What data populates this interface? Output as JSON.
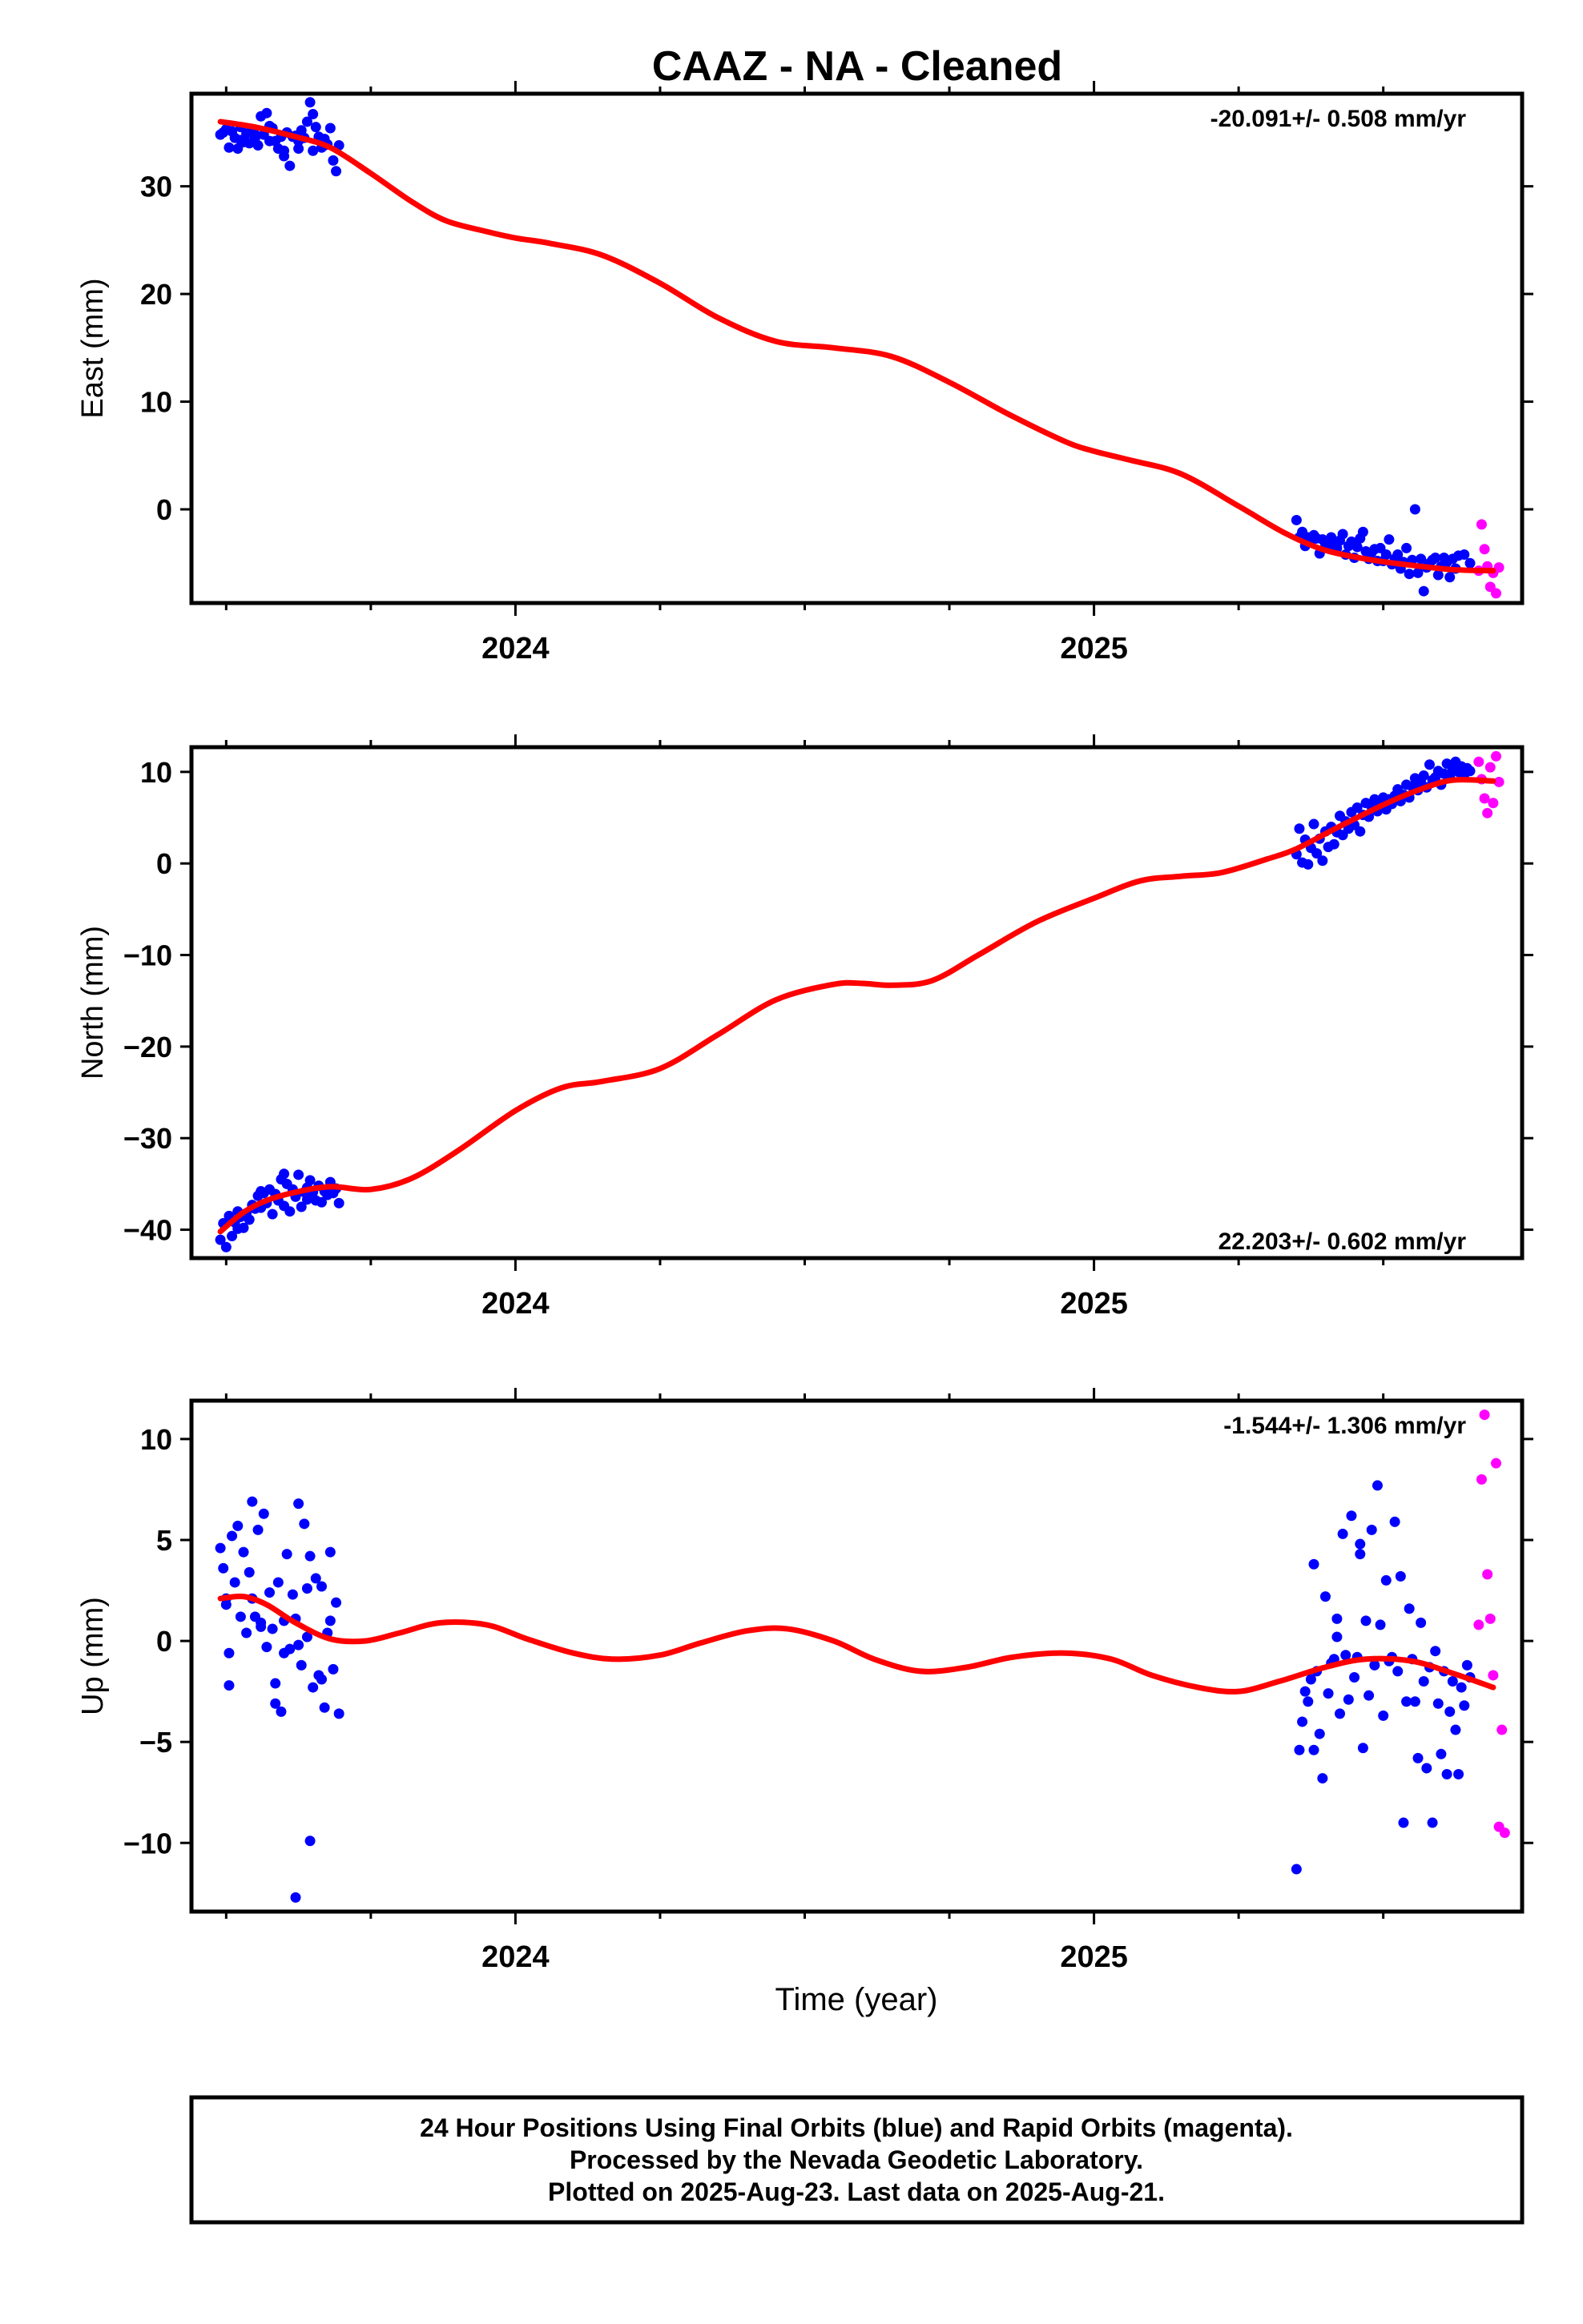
{
  "title": "CAAZ  - NA - Cleaned",
  "xlabel": "Time (year)",
  "footer": [
    "24 Hour Positions Using Final Orbits (blue) and Rapid Orbits (magenta).",
    "Processed by the Nevada Geodetic Laboratory.",
    "Plotted on 2025-Aug-23. Last data on 2025-Aug-21."
  ],
  "colors": {
    "final": "#0000ff",
    "rapid": "#ff00ff",
    "fit": "#ff0000",
    "frame": "#000000"
  },
  "chart_data": [
    {
      "type": "scatter",
      "ylabel": "East (mm)",
      "rate": "-20.091+/- 0.508 mm/yr",
      "xlim": [
        2023.44,
        2025.74
      ],
      "ylim": [
        -8.7,
        38.6
      ],
      "yticks": [
        0,
        10,
        20,
        30
      ],
      "xticks": [
        2024,
        2025
      ],
      "fit": {
        "x": [
          2023.49,
          2023.55,
          2023.62,
          2023.68,
          2023.75,
          2023.82,
          2023.88,
          2023.95,
          2024.0,
          2024.06,
          2024.15,
          2024.25,
          2024.35,
          2024.45,
          2024.55,
          2024.65,
          2024.75,
          2024.85,
          2024.95,
          2025.0,
          2025.06,
          2025.15,
          2025.25,
          2025.33,
          2025.4,
          2025.48,
          2025.55,
          2025.62,
          2025.69
        ],
        "y": [
          36.0,
          35.5,
          34.6,
          33.6,
          31.2,
          28.6,
          26.8,
          25.8,
          25.2,
          24.7,
          23.6,
          21.0,
          17.8,
          15.6,
          15.0,
          14.2,
          11.8,
          8.9,
          6.3,
          5.4,
          4.6,
          3.3,
          0.3,
          -2.2,
          -3.8,
          -4.7,
          -5.2,
          -5.6,
          -5.7
        ]
      },
      "series": [
        {
          "name": "Final Orbits (blue)",
          "x": [
            2023.49,
            2023.5,
            2023.505,
            2023.51,
            2023.515,
            2023.52,
            2023.525,
            2023.53,
            2023.535,
            2023.54,
            2023.545,
            2023.55,
            2023.555,
            2023.56,
            2023.565,
            2023.57,
            2023.575,
            2023.58,
            2023.585,
            2023.59,
            2023.595,
            2023.6,
            2023.605,
            2023.61,
            2023.615,
            2023.62,
            2023.625,
            2023.63,
            2023.635,
            2023.64,
            2023.645,
            2023.65,
            2023.655,
            2023.66,
            2023.665,
            2023.67,
            2023.675,
            2023.68,
            2023.685,
            2023.69,
            2023.695,
            2023.495,
            2023.525,
            2023.55,
            2023.575,
            2023.6,
            2023.625,
            2023.65,
            2023.67,
            2025.35,
            2025.355,
            2025.36,
            2025.365,
            2025.37,
            2025.375,
            2025.38,
            2025.385,
            2025.39,
            2025.395,
            2025.4,
            2025.405,
            2025.41,
            2025.415,
            2025.42,
            2025.425,
            2025.43,
            2025.435,
            2025.44,
            2025.445,
            2025.45,
            2025.455,
            2025.46,
            2025.465,
            2025.47,
            2025.475,
            2025.48,
            2025.485,
            2025.49,
            2025.495,
            2025.5,
            2025.505,
            2025.51,
            2025.515,
            2025.52,
            2025.525,
            2025.53,
            2025.535,
            2025.54,
            2025.545,
            2025.55,
            2025.555,
            2025.56,
            2025.565,
            2025.57,
            2025.575,
            2025.58,
            2025.585,
            2025.59,
            2025.595,
            2025.6,
            2025.605,
            2025.61,
            2025.615,
            2025.62,
            2025.625,
            2025.63,
            2025.64,
            2025.65
          ],
          "y": [
            34.8,
            35.3,
            33.6,
            35.1,
            34.5,
            33.5,
            35.5,
            34.1,
            34.9,
            34.0,
            35.3,
            34.5,
            33.8,
            36.5,
            34.8,
            36.8,
            34.2,
            35.4,
            34.2,
            33.5,
            34.6,
            33.3,
            35.0,
            31.9,
            34.6,
            34.7,
            33.5,
            35.2,
            34.5,
            36.0,
            37.8,
            33.3,
            35.5,
            34.6,
            33.6,
            34.4,
            33.9,
            35.4,
            32.4,
            31.4,
            33.8,
            35.0,
            34.3,
            34.8,
            35.6,
            32.8,
            34.2,
            36.7,
            33.8,
            -1.0,
            -2.6,
            -2.1,
            -3.4,
            -2.6,
            -3.0,
            -2.4,
            -2.7,
            -4.1,
            -2.8,
            -3.2,
            -3.5,
            -2.6,
            -3.0,
            -3.6,
            -2.9,
            -2.3,
            -4.2,
            -3.4,
            -3.0,
            -4.5,
            -3.5,
            -2.7,
            -2.1,
            -3.9,
            -4.6,
            -4.0,
            -3.7,
            -4.8,
            -3.6,
            -4.8,
            -4.2,
            -2.8,
            -5.1,
            -4.6,
            -4.2,
            -5.5,
            -4.9,
            -3.6,
            -6.0,
            -4.7,
            0.0,
            -5.9,
            -4.6,
            -7.6,
            -5.4,
            -5.0,
            -4.7,
            -4.5,
            -6.1,
            -5.3,
            -4.5,
            -4.9,
            -6.3,
            -4.6,
            -5.5,
            -4.3,
            -4.2,
            -5.0
          ],
          "color": "#0000ff"
        },
        {
          "name": "Rapid Orbits (magenta)",
          "x": [
            2025.665,
            2025.67,
            2025.675,
            2025.68,
            2025.685,
            2025.69,
            2025.695,
            2025.7
          ],
          "y": [
            -5.7,
            -1.4,
            -3.7,
            -5.3,
            -7.2,
            -5.9,
            -7.8,
            -5.4
          ],
          "color": "#ff00ff"
        }
      ]
    },
    {
      "type": "scatter",
      "ylabel": "North (mm)",
      "rate": "22.203+/- 0.602 mm/yr",
      "xlim": [
        2023.44,
        2025.74
      ],
      "ylim": [
        -43.1,
        12.7
      ],
      "yticks": [
        -40,
        -30,
        -20,
        -10,
        0,
        10
      ],
      "xticks": [
        2024,
        2025
      ],
      "fit": {
        "x": [
          2023.49,
          2023.53,
          2023.57,
          2023.62,
          2023.68,
          2023.75,
          2023.82,
          2023.9,
          2024.0,
          2024.08,
          2024.15,
          2024.25,
          2024.35,
          2024.45,
          2024.55,
          2024.6,
          2024.65,
          2024.72,
          2024.8,
          2024.9,
          2025.0,
          2025.08,
          2025.15,
          2025.22,
          2025.3,
          2025.35,
          2025.42,
          2025.5,
          2025.56,
          2025.62,
          2025.69
        ],
        "y": [
          -40.2,
          -38.1,
          -36.8,
          -35.9,
          -35.3,
          -35.6,
          -34.4,
          -31.4,
          -27.0,
          -24.5,
          -23.8,
          -22.4,
          -18.7,
          -14.9,
          -13.2,
          -13.1,
          -13.3,
          -12.8,
          -10.0,
          -6.4,
          -3.8,
          -1.9,
          -1.4,
          -1.0,
          0.5,
          1.6,
          3.9,
          6.4,
          8.0,
          9.1,
          9.0
        ]
      },
      "series": [
        {
          "name": "Final Orbits (blue)",
          "x": [
            2023.49,
            2023.495,
            2023.5,
            2023.505,
            2023.51,
            2023.515,
            2023.52,
            2023.525,
            2023.53,
            2023.535,
            2023.54,
            2023.545,
            2023.55,
            2023.555,
            2023.56,
            2023.565,
            2023.57,
            2023.575,
            2023.58,
            2023.585,
            2023.59,
            2023.595,
            2023.6,
            2023.605,
            2023.61,
            2023.615,
            2023.62,
            2023.625,
            2023.63,
            2023.635,
            2023.64,
            2023.645,
            2023.65,
            2023.655,
            2023.66,
            2023.665,
            2023.67,
            2023.675,
            2023.68,
            2023.685,
            2023.69,
            2023.695,
            2023.52,
            2023.56,
            2023.6,
            2023.64,
            2025.35,
            2025.355,
            2025.36,
            2025.365,
            2025.37,
            2025.375,
            2025.38,
            2025.385,
            2025.39,
            2025.395,
            2025.4,
            2025.405,
            2025.41,
            2025.415,
            2025.42,
            2025.425,
            2025.43,
            2025.435,
            2025.44,
            2025.445,
            2025.45,
            2025.455,
            2025.46,
            2025.465,
            2025.47,
            2025.475,
            2025.48,
            2025.485,
            2025.49,
            2025.495,
            2025.5,
            2025.505,
            2025.51,
            2025.515,
            2025.52,
            2025.525,
            2025.53,
            2025.535,
            2025.54,
            2025.545,
            2025.55,
            2025.555,
            2025.56,
            2025.565,
            2025.57,
            2025.575,
            2025.58,
            2025.585,
            2025.59,
            2025.595,
            2025.6,
            2025.605,
            2025.61,
            2025.615,
            2025.62,
            2025.625,
            2025.63,
            2025.635,
            2025.64,
            2025.645,
            2025.65
          ],
          "y": [
            -41.1,
            -39.3,
            -41.9,
            -38.5,
            -40.7,
            -39.2,
            -39.9,
            -38.6,
            -39.8,
            -38.2,
            -38.9,
            -37.3,
            -37.7,
            -36.3,
            -37.6,
            -36.0,
            -37.1,
            -35.6,
            -38.3,
            -36.1,
            -36.8,
            -34.5,
            -37.4,
            -35.0,
            -38.0,
            -35.6,
            -36.4,
            -34.0,
            -37.5,
            -35.9,
            -36.7,
            -34.6,
            -35.9,
            -36.8,
            -35.2,
            -37.0,
            -35.8,
            -36.2,
            -34.8,
            -36.0,
            -35.5,
            -37.1,
            -38.0,
            -35.8,
            -33.9,
            -35.4,
            1.0,
            3.8,
            0.1,
            2.6,
            -0.1,
            1.7,
            4.3,
            1.1,
            2.7,
            0.3,
            3.5,
            1.8,
            4.0,
            2.1,
            3.4,
            5.2,
            3.1,
            4.6,
            3.8,
            5.6,
            4.2,
            6.1,
            3.5,
            5.3,
            6.6,
            5.1,
            6.2,
            7.0,
            5.7,
            6.4,
            7.2,
            5.9,
            7.0,
            6.5,
            7.4,
            8.1,
            6.8,
            7.5,
            8.6,
            7.2,
            8.4,
            9.3,
            8.0,
            8.9,
            9.6,
            8.3,
            10.8,
            9.1,
            9.4,
            10.1,
            8.6,
            9.8,
            10.9,
            9.5,
            10.3,
            11.1,
            10.0,
            10.6,
            9.7,
            10.4,
            10.1
          ],
          "color": "#0000ff"
        },
        {
          "name": "Rapid Orbits (magenta)",
          "x": [
            2025.665,
            2025.67,
            2025.675,
            2025.68,
            2025.685,
            2025.69,
            2025.695,
            2025.7
          ],
          "y": [
            11.1,
            9.2,
            7.1,
            5.5,
            10.5,
            6.6,
            11.7,
            8.9
          ],
          "color": "#ff00ff"
        }
      ]
    },
    {
      "type": "scatter",
      "ylabel": "Up (mm)",
      "rate": "-1.544+/- 1.306 mm/yr",
      "xlim": [
        2023.44,
        2025.74
      ],
      "ylim": [
        -13.4,
        11.9
      ],
      "yticks": [
        -10,
        -5,
        0,
        5,
        10
      ],
      "xticks": [
        2024,
        2025
      ],
      "fit": {
        "x": [
          2023.49,
          2023.53,
          2023.57,
          2023.62,
          2023.68,
          2023.74,
          2023.8,
          2023.87,
          2023.95,
          2024.02,
          2024.1,
          2024.17,
          2024.25,
          2024.32,
          2024.4,
          2024.47,
          2024.55,
          2024.62,
          2024.7,
          2024.78,
          2024.86,
          2024.95,
          2025.03,
          2025.1,
          2025.18,
          2025.25,
          2025.32,
          2025.4,
          2025.47,
          2025.55,
          2025.62,
          2025.69
        ],
        "y": [
          2.1,
          2.2,
          1.8,
          0.9,
          0.1,
          0.0,
          0.4,
          0.9,
          0.8,
          0.1,
          -0.6,
          -0.9,
          -0.7,
          -0.1,
          0.5,
          0.6,
          0.0,
          -0.9,
          -1.5,
          -1.3,
          -0.8,
          -0.6,
          -0.9,
          -1.7,
          -2.3,
          -2.5,
          -2.0,
          -1.3,
          -0.9,
          -1.0,
          -1.6,
          -2.3
        ]
      },
      "series": [
        {
          "name": "Final Orbits (blue)",
          "x": [
            2023.49,
            2023.495,
            2023.5,
            2023.505,
            2023.51,
            2023.515,
            2023.52,
            2023.525,
            2023.53,
            2023.535,
            2023.54,
            2023.545,
            2023.55,
            2023.555,
            2023.56,
            2023.565,
            2023.57,
            2023.575,
            2023.58,
            2023.585,
            2023.59,
            2023.595,
            2023.6,
            2023.605,
            2023.61,
            2023.615,
            2023.62,
            2023.625,
            2023.63,
            2023.635,
            2023.64,
            2023.645,
            2023.65,
            2023.655,
            2023.66,
            2023.665,
            2023.67,
            2023.675,
            2023.68,
            2023.685,
            2023.69,
            2023.695,
            2023.505,
            2023.545,
            2023.585,
            2023.625,
            2023.665,
            2023.62,
            2023.645,
            2023.5,
            2023.56,
            2023.6,
            2023.64,
            2023.68,
            2025.35,
            2025.355,
            2025.36,
            2025.365,
            2025.37,
            2025.375,
            2025.38,
            2025.385,
            2025.39,
            2025.395,
            2025.4,
            2025.405,
            2025.41,
            2025.415,
            2025.42,
            2025.425,
            2025.43,
            2025.435,
            2025.44,
            2025.445,
            2025.45,
            2025.455,
            2025.46,
            2025.465,
            2025.47,
            2025.475,
            2025.48,
            2025.485,
            2025.49,
            2025.495,
            2025.5,
            2025.505,
            2025.51,
            2025.515,
            2025.52,
            2025.525,
            2025.53,
            2025.535,
            2025.54,
            2025.545,
            2025.55,
            2025.555,
            2025.56,
            2025.565,
            2025.57,
            2025.575,
            2025.58,
            2025.585,
            2025.59,
            2025.595,
            2025.6,
            2025.605,
            2025.61,
            2025.615,
            2025.62,
            2025.625,
            2025.63,
            2025.635,
            2025.64,
            2025.645,
            2025.65,
            2025.38,
            2025.42,
            2025.46
          ],
          "y": [
            4.6,
            3.6,
            2.1,
            -2.2,
            5.2,
            2.9,
            5.7,
            1.2,
            4.4,
            0.4,
            3.4,
            6.9,
            1.2,
            5.5,
            0.7,
            6.3,
            -0.3,
            2.4,
            0.6,
            -3.1,
            2.9,
            -3.5,
            1.0,
            4.3,
            -0.4,
            2.3,
            1.1,
            6.8,
            -1.2,
            5.8,
            0.2,
            4.2,
            -2.3,
            3.1,
            -1.7,
            2.7,
            -3.3,
            0.4,
            4.4,
            -1.4,
            1.9,
            -3.6,
            -0.6,
            2.1,
            -2.1,
            -0.2,
            -1.9,
            -12.7,
            -9.9,
            1.8,
            0.9,
            -0.6,
            2.6,
            1.0,
            -11.3,
            -5.4,
            -4.0,
            -2.5,
            -3.0,
            -1.9,
            3.8,
            -1.5,
            -4.6,
            -6.8,
            2.2,
            -2.6,
            -1.1,
            -0.9,
            1.1,
            -3.6,
            5.3,
            -0.7,
            -2.9,
            6.2,
            -1.8,
            -0.8,
            4.3,
            -5.3,
            1.0,
            -2.7,
            5.5,
            -1.2,
            7.7,
            0.8,
            -3.7,
            3.0,
            -1.0,
            -0.8,
            5.9,
            -1.5,
            3.2,
            -9.0,
            -3.0,
            1.6,
            -0.9,
            -3.0,
            -5.8,
            0.9,
            -2.0,
            -6.3,
            -1.3,
            -9.0,
            -0.5,
            -3.1,
            -5.6,
            -1.5,
            -6.6,
            -3.5,
            -2.0,
            -4.4,
            -6.6,
            -2.3,
            -3.2,
            -1.2,
            -1.8,
            -5.4,
            0.2,
            4.8
          ],
          "color": "#0000ff"
        },
        {
          "name": "Rapid Orbits (magenta)",
          "x": [
            2025.665,
            2025.67,
            2025.675,
            2025.68,
            2025.685,
            2025.69,
            2025.695,
            2025.7,
            2025.705,
            2025.71
          ],
          "y": [
            0.8,
            8.0,
            11.2,
            3.3,
            1.1,
            -1.7,
            8.8,
            -9.2,
            -4.4,
            -9.5
          ],
          "color": "#ff00ff"
        }
      ]
    }
  ]
}
